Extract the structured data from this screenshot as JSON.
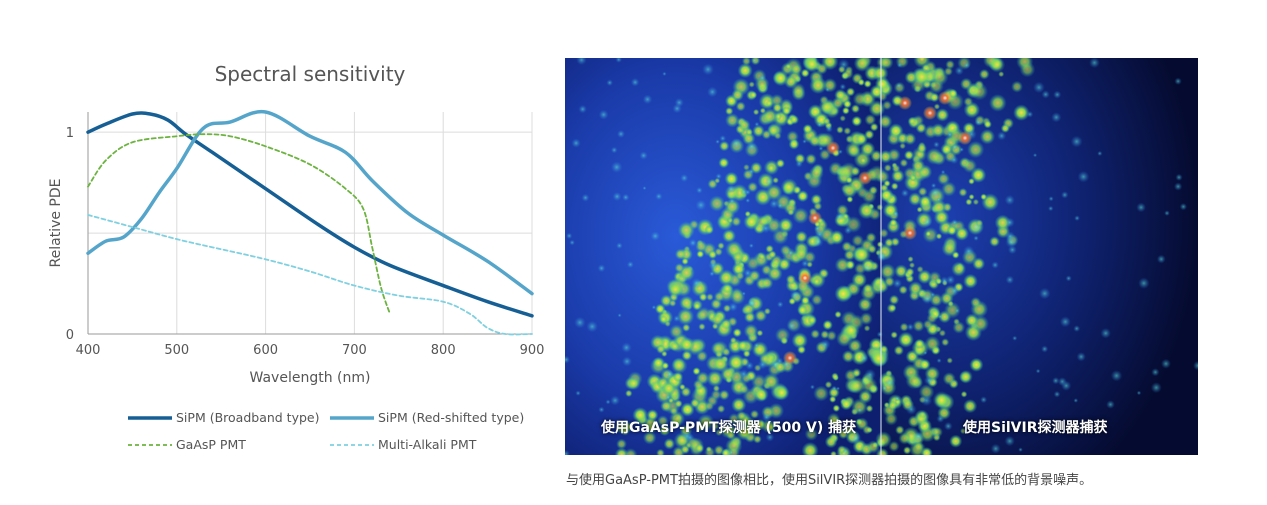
{
  "chart_data": {
    "type": "line",
    "title": "Spectral sensitivity",
    "xlabel": "Wavelength (nm)",
    "ylabel": "Relative PDE",
    "xlim": [
      400,
      900
    ],
    "ylim": [
      0,
      1.1
    ],
    "xticks": [
      400,
      500,
      600,
      700,
      800,
      900
    ],
    "yticks": [
      0,
      1
    ],
    "grid": true,
    "legend_placement": "bottom",
    "series": [
      {
        "name": "SiPM (Broadband type)",
        "color": "#165f95",
        "style": "solid",
        "x": [
          400,
          420,
          450,
          470,
          490,
          510,
          540,
          600,
          660,
          700,
          740,
          800,
          850,
          900
        ],
        "y": [
          1.0,
          1.04,
          1.09,
          1.09,
          1.06,
          0.99,
          0.9,
          0.72,
          0.54,
          0.43,
          0.34,
          0.24,
          0.16,
          0.09
        ]
      },
      {
        "name": "SiPM (Red-shifted type)",
        "color": "#55a5cb",
        "style": "solid",
        "x": [
          400,
          420,
          440,
          460,
          480,
          500,
          530,
          560,
          600,
          650,
          690,
          720,
          760,
          800,
          850,
          900
        ],
        "y": [
          0.4,
          0.46,
          0.48,
          0.57,
          0.7,
          0.82,
          1.02,
          1.05,
          1.1,
          0.98,
          0.9,
          0.76,
          0.6,
          0.49,
          0.36,
          0.2
        ]
      },
      {
        "name": "GaAsP PMT",
        "color": "#6cb33f",
        "style": "dashed",
        "x": [
          400,
          420,
          450,
          500,
          530,
          560,
          600,
          650,
          690,
          710,
          720,
          730,
          740
        ],
        "y": [
          0.73,
          0.86,
          0.95,
          0.98,
          0.99,
          0.98,
          0.93,
          0.84,
          0.72,
          0.62,
          0.43,
          0.23,
          0.1
        ]
      },
      {
        "name": "Multi-Alkali PMT",
        "color": "#7fd0e0",
        "style": "dashed",
        "x": [
          400,
          450,
          500,
          550,
          600,
          650,
          700,
          750,
          800,
          830,
          850,
          870,
          900
        ],
        "y": [
          0.59,
          0.53,
          0.47,
          0.42,
          0.37,
          0.31,
          0.24,
          0.19,
          0.16,
          0.1,
          0.03,
          0.0,
          0.0
        ]
      }
    ]
  },
  "legend": {
    "broadband": "SiPM (Broadband type)",
    "redshift": "SiPM (Red-shifted type)",
    "gaasp": "GaAsP PMT",
    "multialkali": "Multi-Alkali PMT"
  },
  "image": {
    "left_label": "使用GaAsP-PMT探测器 (500 V) 捕获",
    "right_label": "使用SilVIR探测器捕获",
    "caption": "与使用GaAsP-PMT拍摄的图像相比，使用SilVIR探测器拍摄的图像具有非常低的背景噪声。"
  }
}
